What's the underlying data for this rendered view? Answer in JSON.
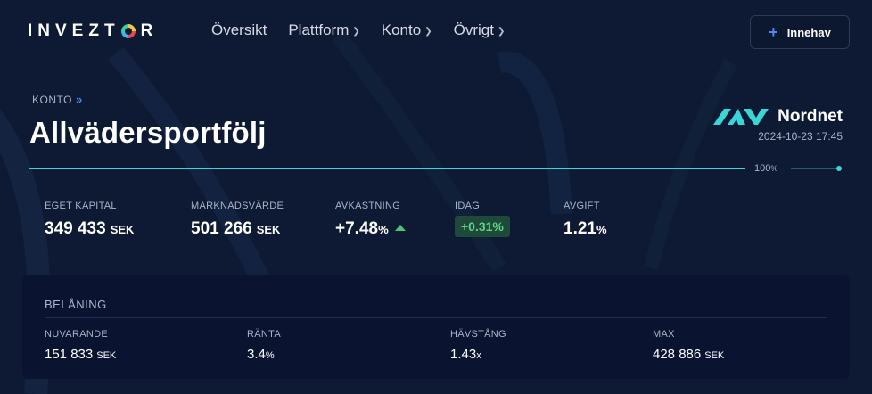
{
  "header": {
    "logo": {
      "before": "INVEZT",
      "after": "R"
    },
    "nav": [
      {
        "label": "Översikt",
        "has_menu": false
      },
      {
        "label": "Plattform",
        "has_menu": true
      },
      {
        "label": "Konto",
        "has_menu": true
      },
      {
        "label": "Övrigt",
        "has_menu": true
      }
    ],
    "add_button": {
      "icon": "plus-icon",
      "label": "Innehav"
    }
  },
  "account": {
    "breadcrumb": "KONTO",
    "title": "Allvädersportfölj",
    "broker": {
      "name": "Nordnet",
      "updated": "2024-10-23 17:45"
    },
    "progress": {
      "value": 100,
      "number": "100",
      "unit": "%"
    }
  },
  "stats": {
    "equity": {
      "label": "EGET KAPITAL",
      "value": "349 433",
      "unit": "SEK"
    },
    "market_value": {
      "label": "MARKNADSVÄRDE",
      "value": "501 266",
      "unit": "SEK"
    },
    "return": {
      "label": "AVKASTNING",
      "value": "+7.48",
      "unit": "%",
      "trend": "up"
    },
    "today": {
      "label": "IDAG",
      "value": "+0.31%"
    },
    "fee": {
      "label": "AVGIFT",
      "value": "1.21",
      "unit": "%"
    }
  },
  "loan": {
    "title": "BELÅNING",
    "current": {
      "label": "NUVARANDE",
      "value": "151 833",
      "unit": "SEK"
    },
    "rate": {
      "label": "RÄNTA",
      "value": "3.4",
      "unit": "%"
    },
    "leverage": {
      "label": "HÄVSTÅNG",
      "value": "1.43",
      "unit": "x"
    },
    "max": {
      "label": "MAX",
      "value": "428 886",
      "unit": "SEK"
    }
  },
  "colors": {
    "background": "#0e1a33",
    "panel": "#0a1430",
    "accent_teal": "#3ad5d5",
    "accent_blue": "#4a8cf0",
    "positive_green": "#5ad48a",
    "positive_badge_bg": "#1f4a3a"
  }
}
